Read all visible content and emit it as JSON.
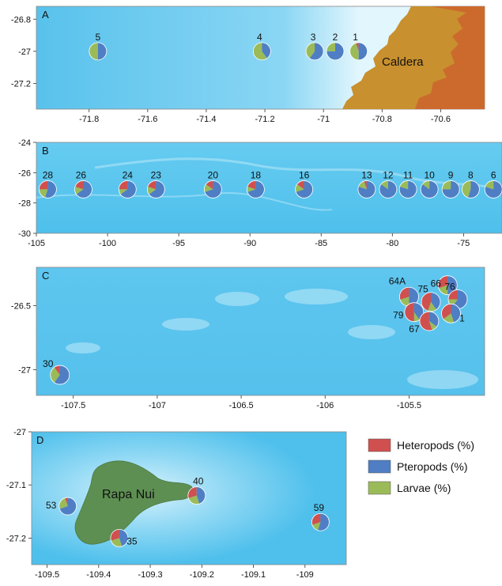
{
  "figure": {
    "panels": [
      {
        "id": "A",
        "place_label": "Caldera",
        "y_ticks": [
          "-26.8",
          "-27",
          "-27.2"
        ],
        "x_ticks": [
          "-71.8",
          "-71.6",
          "-71.4",
          "-71.2",
          "-71",
          "-70.8",
          "-70.6"
        ],
        "stations": [
          {
            "label": "5",
            "lon": -71.77,
            "lat": -27.0,
            "heteropods": 0,
            "pteropods": 50,
            "larvae": 50
          },
          {
            "label": "4",
            "lon": -71.21,
            "lat": -27.0,
            "heteropods": 0,
            "pteropods": 40,
            "larvae": 60
          },
          {
            "label": "3",
            "lon": -71.03,
            "lat": -27.0,
            "heteropods": 0,
            "pteropods": 60,
            "larvae": 40
          },
          {
            "label": "2",
            "lon": -70.96,
            "lat": -27.0,
            "heteropods": 0,
            "pteropods": 75,
            "larvae": 25
          },
          {
            "label": "1",
            "lon": -70.88,
            "lat": -27.0,
            "heteropods": 5,
            "pteropods": 50,
            "larvae": 45
          }
        ]
      },
      {
        "id": "B",
        "y_ticks": [
          "-24",
          "-26",
          "-28",
          "-30"
        ],
        "x_ticks": [
          "-105",
          "-100",
          "-95",
          "-90",
          "-85",
          "-80",
          "-75"
        ],
        "stations": [
          {
            "label": "28",
            "lon": -104.2,
            "lat": -27.1,
            "heteropods": 25,
            "pteropods": 55,
            "larvae": 20
          },
          {
            "label": "26",
            "lon": -101.7,
            "lat": -27.1,
            "heteropods": 20,
            "pteropods": 65,
            "larvae": 15
          },
          {
            "label": "24",
            "lon": -98.6,
            "lat": -27.1,
            "heteropods": 25,
            "pteropods": 65,
            "larvae": 10
          },
          {
            "label": "23",
            "lon": -96.6,
            "lat": -27.1,
            "heteropods": 20,
            "pteropods": 65,
            "larvae": 15
          },
          {
            "label": "20",
            "lon": -92.6,
            "lat": -27.1,
            "heteropods": 15,
            "pteropods": 70,
            "larvae": 15
          },
          {
            "label": "18",
            "lon": -89.6,
            "lat": -27.1,
            "heteropods": 20,
            "pteropods": 70,
            "larvae": 10
          },
          {
            "label": "16",
            "lon": -86.2,
            "lat": -27.1,
            "heteropods": 15,
            "pteropods": 70,
            "larvae": 15
          },
          {
            "label": "13",
            "lon": -81.8,
            "lat": -27.1,
            "heteropods": 5,
            "pteropods": 80,
            "larvae": 15
          },
          {
            "label": "12",
            "lon": -80.3,
            "lat": -27.1,
            "heteropods": 0,
            "pteropods": 85,
            "larvae": 15
          },
          {
            "label": "11",
            "lon": -78.9,
            "lat": -27.1,
            "heteropods": 0,
            "pteropods": 80,
            "larvae": 20
          },
          {
            "label": "10",
            "lon": -77.4,
            "lat": -27.1,
            "heteropods": 0,
            "pteropods": 85,
            "larvae": 15
          },
          {
            "label": "9",
            "lon": -75.9,
            "lat": -27.1,
            "heteropods": 0,
            "pteropods": 75,
            "larvae": 25
          },
          {
            "label": "8",
            "lon": -74.5,
            "lat": -27.1,
            "heteropods": 0,
            "pteropods": 55,
            "larvae": 45
          },
          {
            "label": "6",
            "lon": -72.9,
            "lat": -27.1,
            "heteropods": 0,
            "pteropods": 80,
            "larvae": 20
          }
        ]
      },
      {
        "id": "C",
        "y_ticks": [
          "-26.5",
          "-27"
        ],
        "x_ticks": [
          "-107.5",
          "-107",
          "-106.5",
          "-106",
          "-105.5"
        ],
        "stations": [
          {
            "label": "30",
            "lon": -107.58,
            "lat": -27.04,
            "heteropods": 10,
            "pteropods": 60,
            "larvae": 30
          },
          {
            "label": "64A",
            "lon": -105.5,
            "lat": -26.43,
            "heteropods": 30,
            "pteropods": 50,
            "larvae": 20
          },
          {
            "label": "66",
            "lon": -105.27,
            "lat": -26.34,
            "heteropods": 30,
            "pteropods": 50,
            "larvae": 20
          },
          {
            "label": "75",
            "lon": -105.37,
            "lat": -26.47,
            "heteropods": 45,
            "pteropods": 40,
            "larvae": 15
          },
          {
            "label": "76",
            "lon": -105.21,
            "lat": -26.45,
            "heteropods": 25,
            "pteropods": 60,
            "larvae": 15
          },
          {
            "label": "79",
            "lon": -105.47,
            "lat": -26.55,
            "heteropods": 50,
            "pteropods": 40,
            "larvae": 10
          },
          {
            "label": "67",
            "lon": -105.38,
            "lat": -26.62,
            "heteropods": 55,
            "pteropods": 35,
            "larvae": 10
          },
          {
            "label": "1",
            "lon": -105.25,
            "lat": -26.56,
            "heteropods": 35,
            "pteropods": 45,
            "larvae": 20
          }
        ]
      },
      {
        "id": "D",
        "place_label": "Rapa Nui",
        "y_ticks": [
          "-27",
          "-27.1",
          "-27.2"
        ],
        "x_ticks": [
          "-109.5",
          "-109.4",
          "-109.3",
          "-109.2",
          "-109.1",
          "-109"
        ],
        "stations": [
          {
            "label": "53",
            "lon": -109.46,
            "lat": -27.14,
            "heteropods": 5,
            "pteropods": 70,
            "larvae": 25
          },
          {
            "label": "40",
            "lon": -109.21,
            "lat": -27.12,
            "heteropods": 30,
            "pteropods": 45,
            "larvae": 25
          },
          {
            "label": "35",
            "lon": -109.36,
            "lat": -27.2,
            "heteropods": 30,
            "pteropods": 45,
            "larvae": 25
          },
          {
            "label": "59",
            "lon": -108.97,
            "lat": -27.17,
            "heteropods": 30,
            "pteropods": 55,
            "larvae": 15
          }
        ]
      }
    ],
    "legend": [
      {
        "label": "Heteropods (%)",
        "color": "#d0504f"
      },
      {
        "label": "Pteropods (%)",
        "color": "#4f7ec4"
      },
      {
        "label": "Larvae (%)",
        "color": "#9bbb59"
      }
    ]
  },
  "colors": {
    "ocean": "#5cc6ee",
    "land_low": "#c8902e",
    "land_high": "#cc6a2e",
    "island": "#5d8f52",
    "heteropods": "#d0504f",
    "pteropods": "#4f7ec4",
    "larvae": "#9bbb59"
  }
}
